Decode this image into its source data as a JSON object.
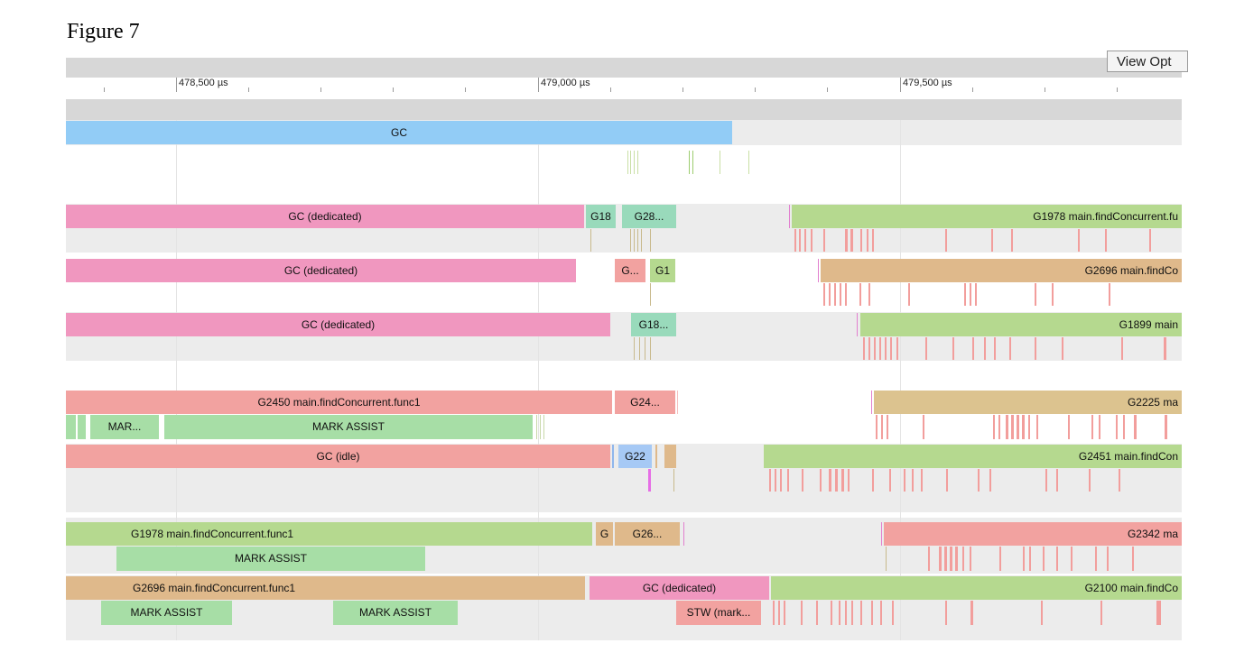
{
  "figure": {
    "title": "Figure 7"
  },
  "toolbar": {
    "view_options_label": "View Opt"
  },
  "ruler": {
    "labels": [
      "478,500 µs",
      "479,000 µs",
      "479,500 µs"
    ]
  },
  "gc_track": {
    "label": "GC"
  },
  "procs": [
    {
      "slices": [
        "GC (dedicated)",
        "G18",
        "G28...",
        "G1978 main.findConcurrent.fu"
      ]
    },
    {
      "slices": [
        "GC (dedicated)",
        "G...",
        "G1",
        "G2696 main.findCo"
      ]
    },
    {
      "slices": [
        "GC (dedicated)",
        "G18...",
        "G1899 main"
      ]
    },
    {
      "slices": [
        "G2450 main.findConcurrent.func1",
        "G24...",
        "G2225 ma"
      ],
      "sub_slices": [
        "MAR...",
        "MARK ASSIST"
      ]
    },
    {
      "slices": [
        "GC (idle)",
        "G22",
        "G2451 main.findCon"
      ]
    },
    {
      "slices": [
        "G1978 main.findConcurrent.func1",
        "G",
        "G26...",
        "G2342 ma"
      ],
      "sub_slices": [
        "MARK ASSIST"
      ]
    },
    {
      "slices": [
        "G2696 main.findConcurrent.func1",
        "GC (dedicated)",
        "G2100 main.findCo"
      ],
      "sub_slices": [
        "MARK ASSIST",
        "MARK ASSIST",
        "STW (mark..."
      ]
    }
  ],
  "colors": {
    "gc": "#92ccf6",
    "gc_dedicated": "#f097bf",
    "goroutine_green": "#b5d98f",
    "goroutine_tan": "#dfb98b",
    "goroutine_salmon": "#f2a2a0",
    "mark_assist": "#a7dea6",
    "track_background": "#ececec"
  }
}
